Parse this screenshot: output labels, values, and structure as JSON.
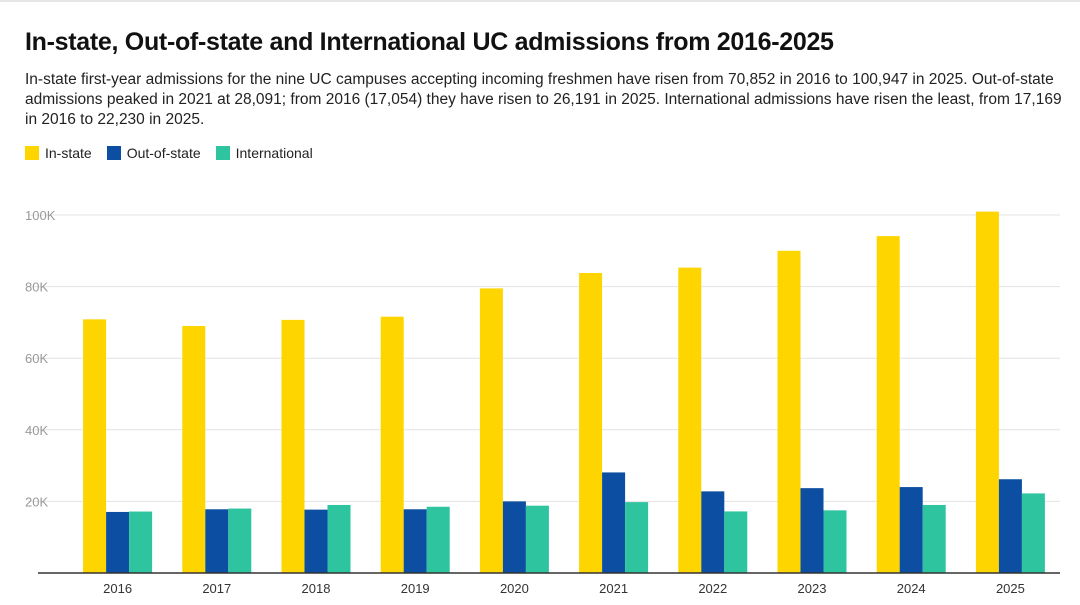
{
  "title": "In-state, Out-of-state and International UC admissions from 2016-2025",
  "subtitle": "In-state first-year admissions for the nine UC campuses accepting incoming freshmen have risen from 70,852 in 2016 to 100,947 in 2025. Out-of-state admissions peaked in 2021 at 28,091; from 2016 (17,054) they have risen to 26,191 in 2025. International admissions have risen the least, from 17,169 in 2016 to 22,230 in 2025.",
  "legend": [
    {
      "label": "In-state",
      "color": "#FFD500"
    },
    {
      "label": "Out-of-state",
      "color": "#0B4EA2"
    },
    {
      "label": "International",
      "color": "#2EC4A0"
    }
  ],
  "chart_data": {
    "type": "bar",
    "title": "In-state, Out-of-state and International UC admissions from 2016-2025",
    "xlabel": "",
    "ylabel": "",
    "ylim": [
      0,
      100000
    ],
    "yticks": [
      20000,
      40000,
      60000,
      80000,
      100000
    ],
    "ytick_labels": [
      "20K",
      "40K",
      "60K",
      "80K",
      "100K"
    ],
    "grid": true,
    "legend_position": "top-left",
    "categories": [
      "2016",
      "2017",
      "2018",
      "2019",
      "2020",
      "2021",
      "2022",
      "2023",
      "2024",
      "2025"
    ],
    "series": [
      {
        "name": "In-state",
        "color": "#FFD500",
        "values": [
          70852,
          69000,
          70700,
          71600,
          79500,
          83800,
          85300,
          90000,
          94100,
          100947
        ]
      },
      {
        "name": "Out-of-state",
        "color": "#0B4EA2",
        "values": [
          17054,
          17800,
          17700,
          17800,
          20000,
          28091,
          22800,
          23700,
          24000,
          26191
        ]
      },
      {
        "name": "International",
        "color": "#2EC4A0",
        "values": [
          17169,
          18000,
          19000,
          18500,
          18800,
          19800,
          17200,
          17500,
          19000,
          22230
        ]
      }
    ]
  }
}
